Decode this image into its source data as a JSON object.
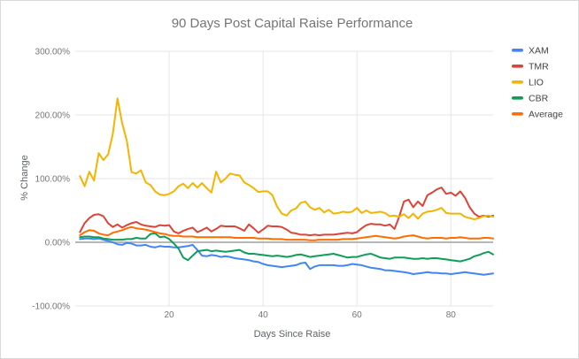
{
  "chart_data": {
    "type": "line",
    "title": "90 Days Post Capital Raise Performance",
    "xlabel": "Days Since Raise",
    "ylabel": "% Change",
    "legend_position": "right",
    "grid": true,
    "xlim": [
      0,
      89
    ],
    "ylim": [
      -100,
      300
    ],
    "x_ticks": [
      {
        "label": "20",
        "value": 20
      },
      {
        "label": "40",
        "value": 40
      },
      {
        "label": "60",
        "value": 60
      },
      {
        "label": "80",
        "value": 80
      }
    ],
    "y_ticks": [
      {
        "label": "300.00%",
        "value": 300
      },
      {
        "label": "200.00%",
        "value": 200
      },
      {
        "label": "100.00%",
        "value": 100
      },
      {
        "label": "0.00%",
        "value": 0
      },
      {
        "label": "-100.00%",
        "value": -100
      }
    ],
    "baseline_value": 0,
    "x": [
      1,
      2,
      3,
      4,
      5,
      6,
      7,
      8,
      9,
      10,
      11,
      12,
      13,
      14,
      15,
      16,
      17,
      18,
      19,
      20,
      21,
      22,
      23,
      24,
      25,
      26,
      27,
      28,
      29,
      30,
      31,
      32,
      33,
      34,
      35,
      36,
      37,
      38,
      39,
      40,
      41,
      42,
      43,
      44,
      45,
      46,
      47,
      48,
      49,
      50,
      51,
      52,
      53,
      54,
      55,
      56,
      57,
      58,
      59,
      60,
      61,
      62,
      63,
      64,
      65,
      66,
      67,
      68,
      69,
      70,
      71,
      72,
      73,
      74,
      75,
      76,
      77,
      78,
      79,
      80,
      81,
      82,
      83,
      84,
      85,
      86,
      87,
      88,
      89
    ],
    "series": [
      {
        "name": "XAM",
        "color": "#4285F4",
        "values": [
          5,
          6,
          6,
          5,
          6,
          4,
          2,
          0,
          -3,
          -4,
          -1,
          -2,
          -5,
          -5,
          -4,
          -7,
          -8,
          -6,
          -7,
          -7,
          -8,
          -8,
          -7,
          -6,
          -4,
          -12,
          -21,
          -22,
          -20,
          -21,
          -23,
          -22,
          -23,
          -25,
          -26,
          -27,
          -28,
          -30,
          -31,
          -34,
          -36,
          -37,
          -38,
          -39,
          -38,
          -37,
          -36,
          -33,
          -32,
          -42,
          -38,
          -36,
          -36,
          -36,
          -36,
          -37,
          -37,
          -36,
          -34,
          -35,
          -36,
          -38,
          -40,
          -41,
          -42,
          -44,
          -44,
          -45,
          -46,
          -47,
          -48,
          -50,
          -49,
          -48,
          -47,
          -48,
          -48,
          -49,
          -49,
          -50,
          -49,
          -48,
          -47,
          -48,
          -49,
          -50,
          -51,
          -50,
          -49
        ]
      },
      {
        "name": "TMR",
        "color": "#DB4437",
        "values": [
          16,
          30,
          38,
          43,
          44,
          41,
          30,
          24,
          28,
          23,
          27,
          30,
          32,
          28,
          26,
          25,
          24,
          27,
          26,
          27,
          17,
          14,
          18,
          21,
          23,
          16,
          19,
          23,
          17,
          21,
          26,
          25,
          25,
          25,
          22,
          18,
          28,
          22,
          15,
          20,
          26,
          25,
          25,
          24,
          20,
          15,
          14,
          12,
          12,
          11,
          12,
          11,
          12,
          12,
          12,
          13,
          14,
          15,
          14,
          16,
          22,
          27,
          29,
          28,
          28,
          26,
          28,
          21,
          40,
          64,
          67,
          55,
          64,
          57,
          74,
          78,
          83,
          86,
          76,
          78,
          73,
          80,
          70,
          55,
          45,
          40,
          42,
          40,
          42
        ]
      },
      {
        "name": "LIO",
        "color": "#F4B400",
        "values": [
          104,
          88,
          111,
          97,
          140,
          129,
          138,
          170,
          226,
          187,
          159,
          110,
          108,
          113,
          94,
          90,
          80,
          75,
          74,
          76,
          80,
          88,
          92,
          85,
          93,
          86,
          93,
          85,
          78,
          111,
          94,
          100,
          108,
          106,
          105,
          94,
          90,
          85,
          79,
          80,
          80,
          74,
          56,
          45,
          42,
          50,
          53,
          62,
          64,
          55,
          51,
          54,
          47,
          51,
          45,
          46,
          48,
          47,
          48,
          54,
          46,
          50,
          46,
          47,
          48,
          46,
          41,
          42,
          40,
          44,
          38,
          45,
          37,
          45,
          48,
          49,
          51,
          54,
          46,
          45,
          45,
          45,
          40,
          38,
          36,
          38,
          41,
          42,
          40
        ]
      },
      {
        "name": "CBR",
        "color": "#0F9D58",
        "values": [
          8,
          9,
          9,
          8,
          8,
          6,
          5,
          4,
          4,
          4,
          5,
          5,
          7,
          6,
          6,
          13,
          14,
          8,
          9,
          5,
          -2,
          -10,
          -24,
          -28,
          -21,
          -14,
          -13,
          -12,
          -14,
          -13,
          -14,
          -15,
          -14,
          -13,
          -12,
          -16,
          -18,
          -18,
          -19,
          -20,
          -21,
          -22,
          -21,
          -22,
          -23,
          -22,
          -20,
          -19,
          -21,
          -23,
          -22,
          -21,
          -20,
          -19,
          -18,
          -20,
          -22,
          -24,
          -23,
          -23,
          -21,
          -19,
          -18,
          -21,
          -24,
          -25,
          -26,
          -24,
          -24,
          -24,
          -25,
          -26,
          -26,
          -25,
          -26,
          -25,
          -25,
          -26,
          -27,
          -28,
          -29,
          -30,
          -28,
          -26,
          -22,
          -20,
          -17,
          -15,
          -19
        ]
      },
      {
        "name": "Average",
        "color": "#FF6D00",
        "values": [
          11,
          16,
          19,
          18,
          14,
          12,
          11,
          15,
          17,
          19,
          22,
          24,
          22,
          21,
          20,
          18,
          16,
          14,
          13,
          11,
          10,
          10,
          9,
          9,
          9,
          8,
          8,
          8,
          8,
          8,
          8,
          8,
          8,
          7,
          7,
          7,
          7,
          7,
          6,
          6,
          6,
          5,
          5,
          5,
          4,
          4,
          4,
          4,
          4,
          3,
          3,
          4,
          4,
          4,
          4,
          4,
          5,
          5,
          5,
          6,
          7,
          8,
          9,
          10,
          9,
          8,
          7,
          6,
          7,
          9,
          10,
          11,
          9,
          7,
          6,
          7,
          7,
          7,
          6,
          7,
          7,
          8,
          7,
          6,
          6,
          6,
          7,
          7,
          6
        ]
      }
    ]
  }
}
